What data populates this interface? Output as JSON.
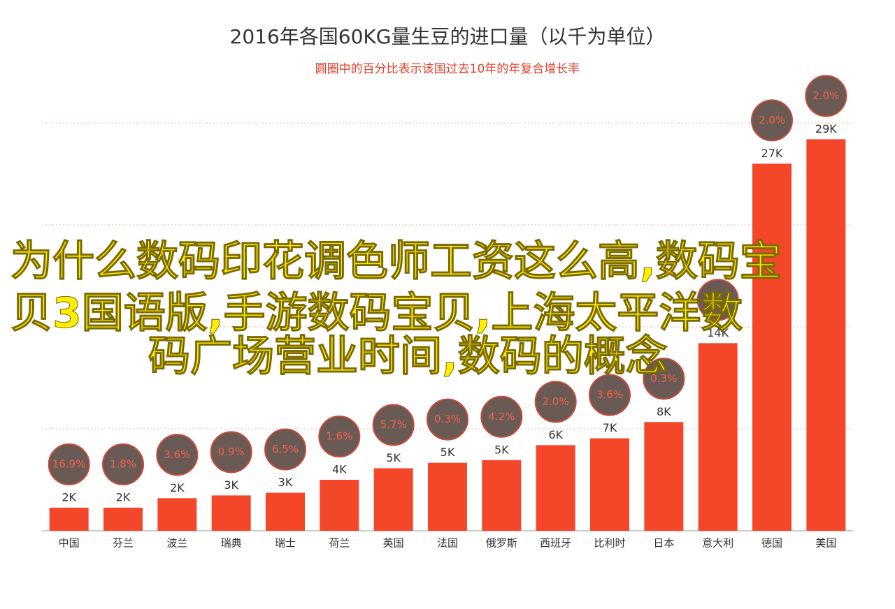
{
  "chart_data": {
    "type": "bar",
    "title": "2016年各国60KG量生豆的进口量（以千为单位）",
    "subtitle": "圆圈中的百分比表示该国过去10年的年复合增长率",
    "categories": [
      "中国",
      "芬兰",
      "波兰",
      "瑞典",
      "瑞士",
      "荷兰",
      "英国",
      "法国",
      "俄罗斯",
      "西班牙",
      "比利时",
      "日本",
      "意大利",
      "德国",
      "美国"
    ],
    "values": [
      1.7,
      1.7,
      2.4,
      2.6,
      2.8,
      3.75,
      4.6,
      5.0,
      5.2,
      6.3,
      6.8,
      8.0,
      13.8,
      27.0,
      28.8
    ],
    "value_labels": [
      "2K",
      "2K",
      "2K",
      "3K",
      "3K",
      "4K",
      "5K",
      "5K",
      "5K",
      "6K",
      "7K",
      "8K",
      "14K",
      "27K",
      "29K"
    ],
    "color": "#f4472a",
    "growth": {
      "values": [
        16.9,
        1.8,
        3.6,
        0.9,
        6.5,
        1.6,
        5.7,
        0.3,
        4.2,
        2.0,
        3.6,
        0.3,
        null,
        2.0,
        2.0
      ],
      "value_labels": [
        "16.9%",
        "1.8%",
        "3.6%",
        "0.9%",
        "6.5%",
        "1.6%",
        "5.7%",
        "0.3%",
        "4.2%",
        "2.0%",
        "3.6%",
        "0.3%",
        null,
        "2.0%",
        "2.0%"
      ],
      "color": "#6a5a56"
    },
    "ylim": [
      0,
      30
    ],
    "yticks": [
      0,
      7.5,
      15,
      22.5,
      30
    ],
    "grid": true
  },
  "overlay_text": [
    "为什么数码印花调色师工资这么高,数码宝",
    "贝3国语版,手游数码宝贝,上海太平洋数",
    "码广场营业时间,数码的概念"
  ]
}
